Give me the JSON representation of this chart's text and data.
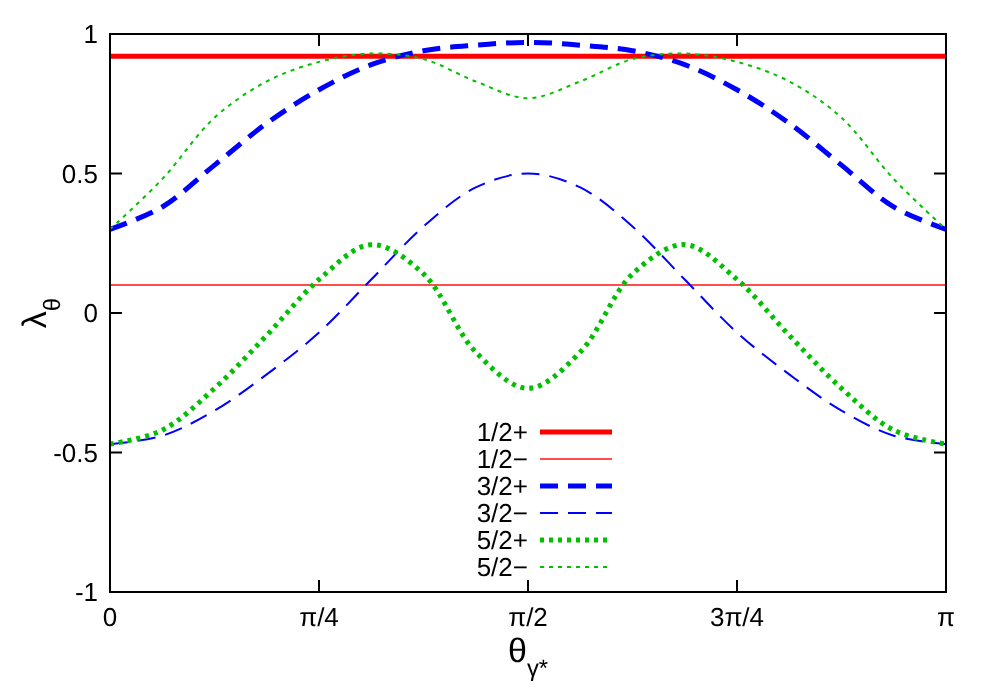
{
  "chart_data": {
    "type": "line",
    "xlabel": "θ$_{γ*}$",
    "ylabel": "λ$_{θ}$",
    "x": [
      0,
      0.1963,
      0.3927,
      0.589,
      0.7854,
      0.9817,
      1.1781,
      1.3744,
      1.5708,
      1.7671,
      1.9635,
      2.1598,
      2.3562,
      2.5525,
      2.7489,
      2.9452,
      3.1416
    ],
    "xlim": [
      0,
      3.1416
    ],
    "ylim": [
      -1,
      1
    ],
    "xticks": [
      0,
      {
        "value": 0.7854,
        "label": "π/4"
      },
      {
        "value": 1.5708,
        "label": "π/2"
      },
      {
        "value": 2.3562,
        "label": "3π/4"
      },
      {
        "value": 3.1416,
        "label": "π"
      }
    ],
    "yticks": [
      -1,
      -0.5,
      0,
      0.5,
      1
    ],
    "legend": "bottom",
    "grid": false,
    "marker": "none",
    "series": [
      {
        "name": "1/2+",
        "color": "#ff0000",
        "line_style": "solid",
        "values": [
          0.92,
          0.92,
          0.92,
          0.92,
          0.92,
          0.92,
          0.92,
          0.92,
          0.92,
          0.92,
          0.92,
          0.92,
          0.92,
          0.92,
          0.92,
          0.92,
          0.92
        ]
      },
      {
        "name": "1/2−",
        "color": "#ff4d4d",
        "line_style": "solid",
        "values": [
          0.1,
          0.1,
          0.1,
          0.1,
          0.1,
          0.1,
          0.1,
          0.1,
          0.1,
          0.1,
          0.1,
          0.1,
          0.1,
          0.1,
          0.1,
          0.1,
          0.1
        ]
      },
      {
        "name": "3/2+",
        "color": "#0000ff",
        "line_style": "dashed",
        "values": [
          0.3,
          0.38,
          0.53,
          0.68,
          0.8,
          0.89,
          0.94,
          0.96,
          0.97,
          0.96,
          0.94,
          0.89,
          0.8,
          0.68,
          0.53,
          0.38,
          0.3
        ]
      },
      {
        "name": "3/2−",
        "color": "#0000ff",
        "line_style": "dashed",
        "values": [
          -0.47,
          -0.44,
          -0.35,
          -0.22,
          -0.07,
          0.12,
          0.31,
          0.45,
          0.5,
          0.45,
          0.31,
          0.12,
          -0.07,
          -0.22,
          -0.35,
          -0.44,
          -0.47
        ]
      },
      {
        "name": "5/2+",
        "color": "#00c000",
        "line_style": "dotted",
        "values": [
          -0.47,
          -0.42,
          -0.27,
          -0.08,
          0.12,
          0.245,
          0.14,
          -0.14,
          -0.27,
          -0.14,
          0.14,
          0.245,
          0.12,
          -0.08,
          -0.27,
          -0.42,
          -0.47
        ]
      },
      {
        "name": "5/2−",
        "color": "#00c000",
        "line_style": "dotted",
        "values": [
          0.3,
          0.48,
          0.7,
          0.83,
          0.9,
          0.93,
          0.91,
          0.83,
          0.77,
          0.83,
          0.91,
          0.93,
          0.9,
          0.83,
          0.7,
          0.48,
          0.3
        ]
      }
    ]
  }
}
